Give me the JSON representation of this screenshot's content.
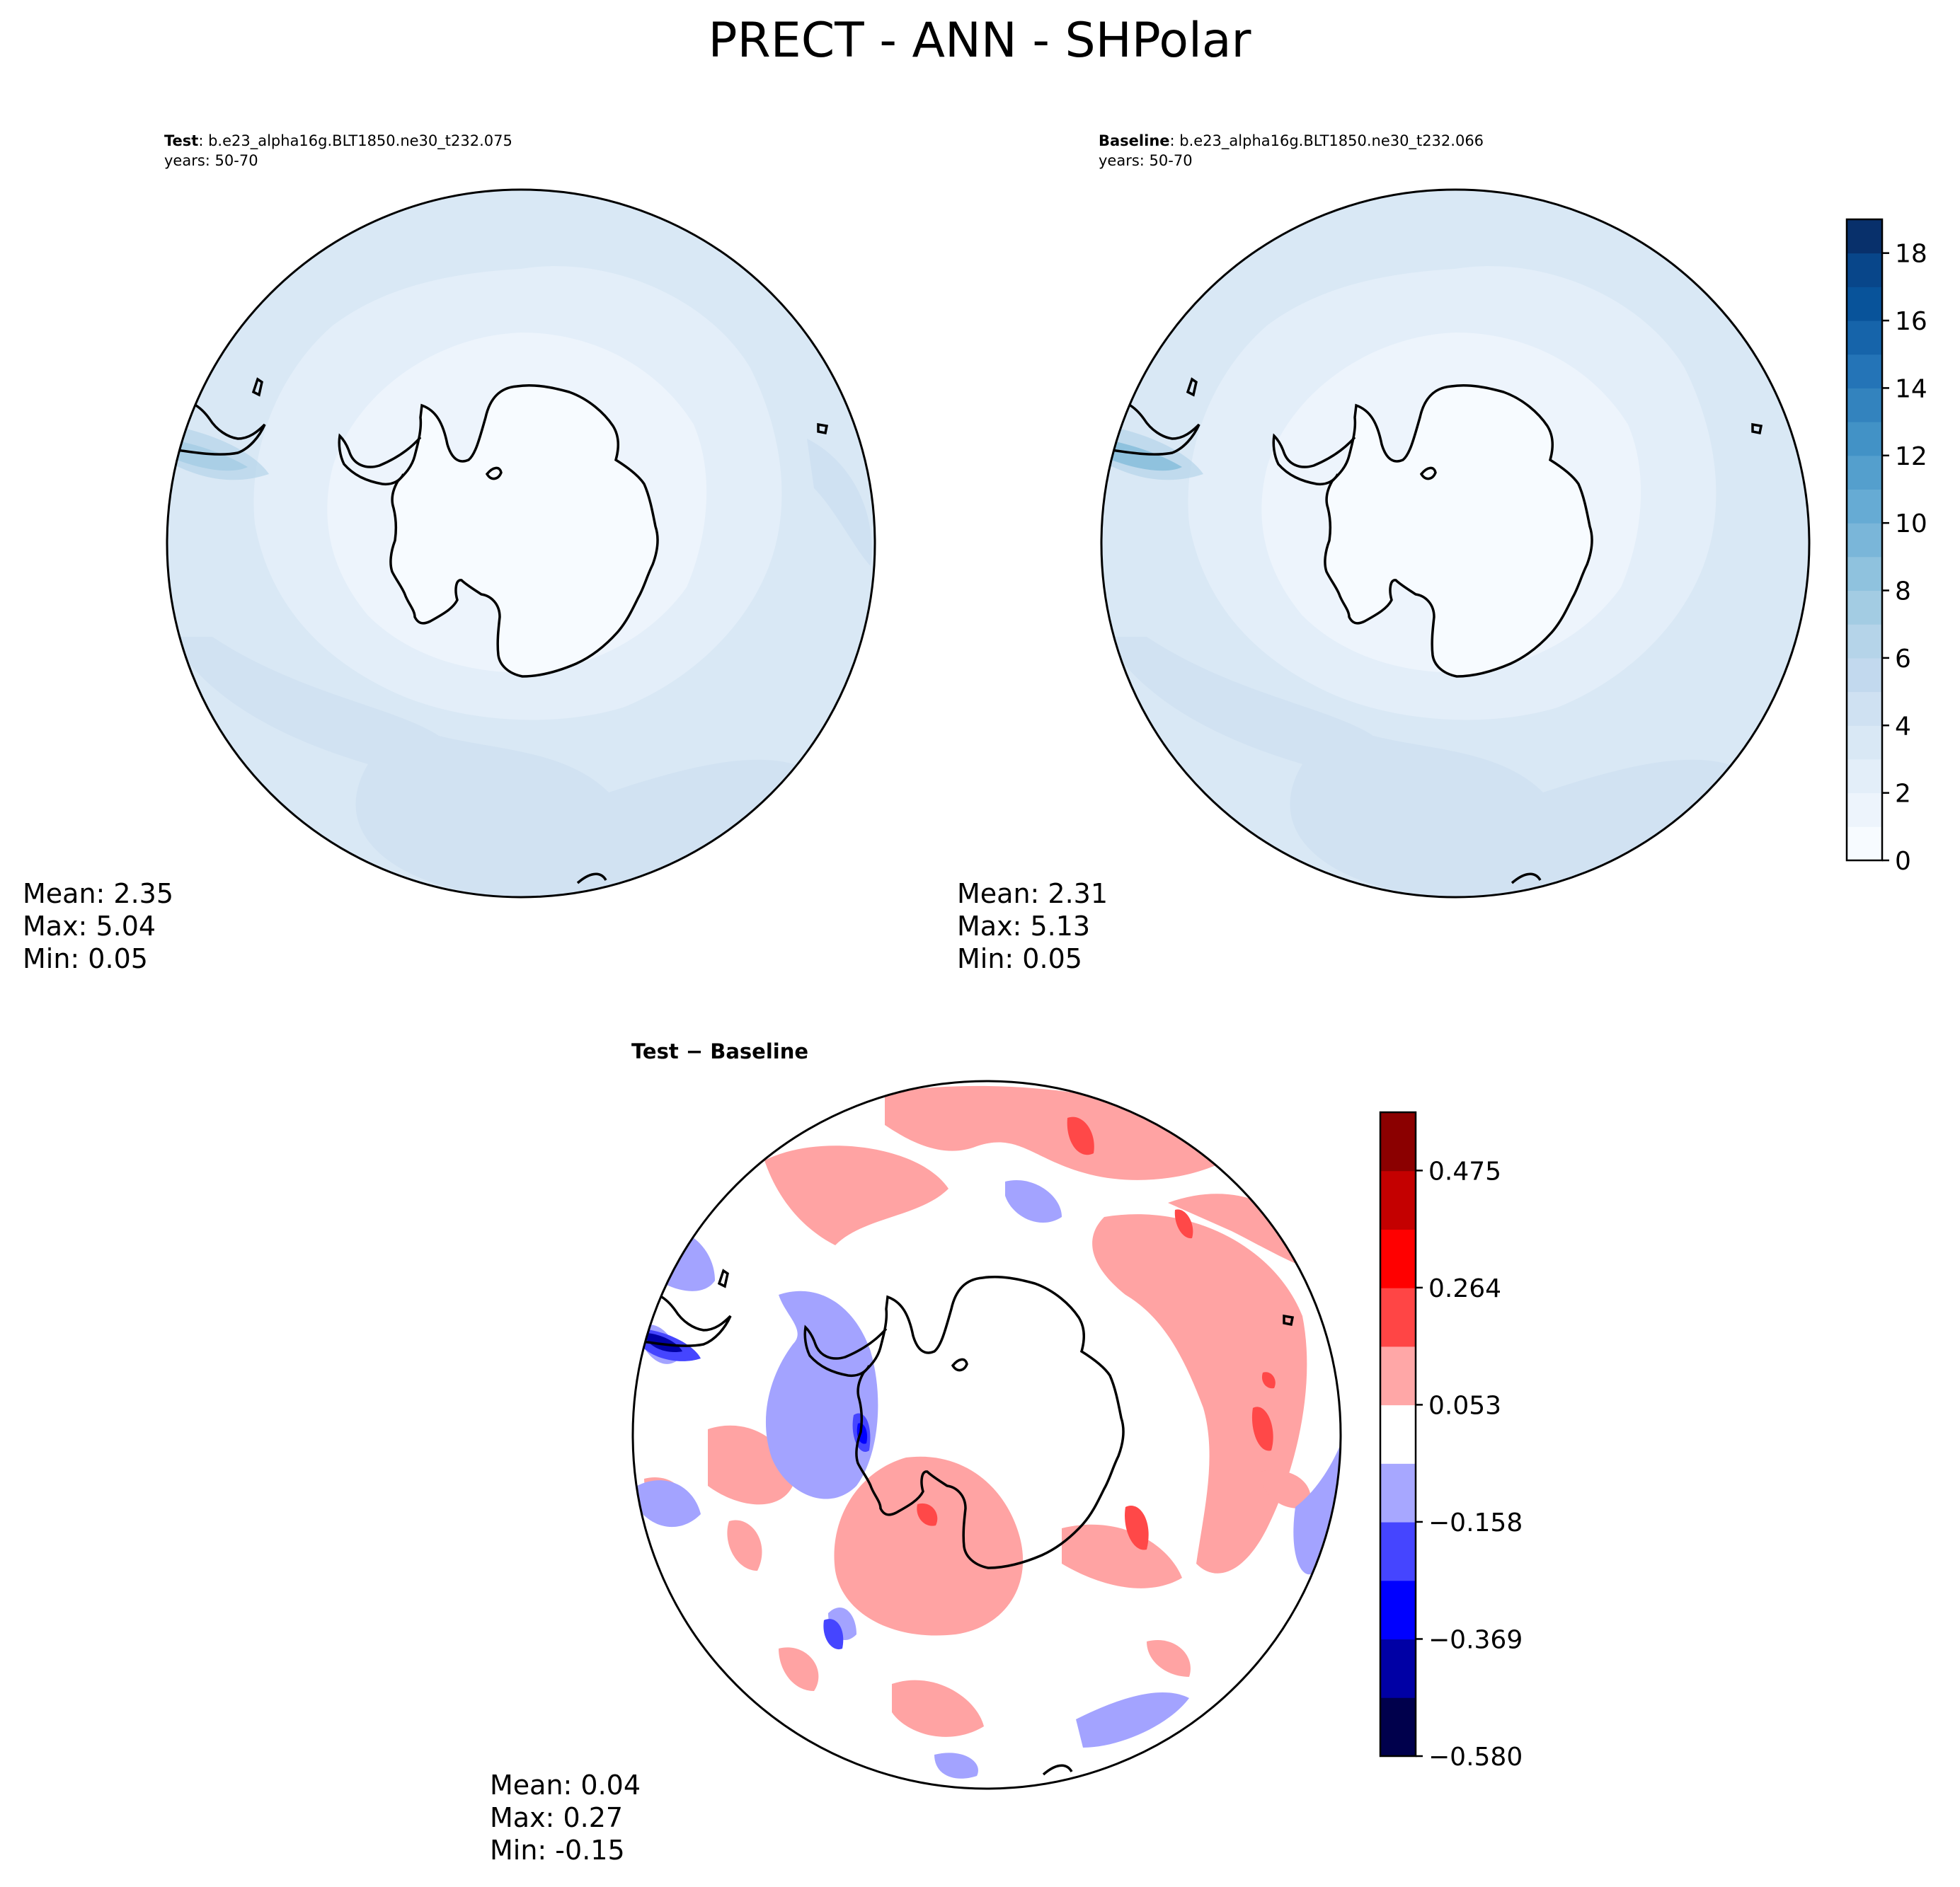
{
  "figure": {
    "title": "PRECT - ANN - SHPolar"
  },
  "chart_data": [
    {
      "type": "contour-map",
      "projection": "south-polar-stereographic",
      "label_bold": "Test",
      "label_rest": ": b.e23_alpha16g.BLT1850.ne30_t232.075",
      "years": "years: 50-70",
      "stats": {
        "mean": "Mean:  2.35",
        "max": "Max:  5.04",
        "min": "Min:  0.05"
      },
      "colormap": "Blues",
      "value_range": [
        0,
        19
      ],
      "levels": [
        0,
        1,
        2,
        3,
        4,
        5,
        6,
        7,
        8,
        9,
        10,
        11,
        12,
        13,
        14,
        15,
        16,
        17,
        18,
        19
      ]
    },
    {
      "type": "contour-map",
      "projection": "south-polar-stereographic",
      "label_bold": "Baseline",
      "label_rest": ": b.e23_alpha16g.BLT1850.ne30_t232.066",
      "years": "years: 50-70",
      "stats": {
        "mean": "Mean:  2.31",
        "max": "Max:  5.13",
        "min": "Min:  0.05"
      },
      "colormap": "Blues",
      "value_range": [
        0,
        19
      ],
      "colorbar": {
        "ticks": [
          "0",
          "2",
          "4",
          "6",
          "8",
          "10",
          "12",
          "14",
          "16",
          "18"
        ],
        "tick_values": [
          0,
          2,
          4,
          6,
          8,
          10,
          12,
          14,
          16,
          18
        ]
      }
    },
    {
      "type": "contour-map",
      "projection": "south-polar-stereographic",
      "label": "Test − Baseline",
      "stats": {
        "mean": "Mean:  0.04",
        "max": "Max:  0.27",
        "min": "Min: -0.15"
      },
      "colormap": "seismic",
      "value_range": [
        -0.58,
        0.58
      ],
      "levels": [
        -0.58,
        -0.474,
        -0.369,
        -0.264,
        -0.158,
        -0.053,
        0.053,
        0.158,
        0.264,
        0.369,
        0.474,
        0.58
      ],
      "colorbar": {
        "ticks": [
          "−0.580",
          "−0.369",
          "−0.158",
          "0.053",
          "0.264",
          "0.475"
        ],
        "tick_values": [
          -0.58,
          -0.369,
          -0.158,
          0.053,
          0.264,
          0.475
        ]
      }
    }
  ],
  "colors": {
    "blues": [
      "#f7fbff",
      "#edf4fc",
      "#e3eef9",
      "#d9e8f5",
      "#cfe1f2",
      "#c2d9ee",
      "#b5d4e9",
      "#a3cce3",
      "#8fc2de",
      "#7ab6d9",
      "#66abd4",
      "#549fcd",
      "#4292c6",
      "#3383be",
      "#2474b7",
      "#1664aa",
      "#08539a",
      "#08468a",
      "#08306b"
    ],
    "diff": [
      "#00004c",
      "#0000a5",
      "#0000ff",
      "#4545ff",
      "#a7a7ff",
      "#ffffff",
      "#ffa7a7",
      "#ff4545",
      "#ff0000",
      "#c40000",
      "#8b0000"
    ],
    "ocean_levels": {
      "level1": "#edf4fc",
      "level2": "#e3eef9",
      "level3": "#d9e8f5",
      "level4": "#cfe1f2",
      "hot": "#8fc2de"
    },
    "diff_pos": "#ffa3a3",
    "diff_neg": "#a3a3ff",
    "diff_pos_strong": "#ff4848",
    "diff_neg_strong": "#4545ff"
  }
}
